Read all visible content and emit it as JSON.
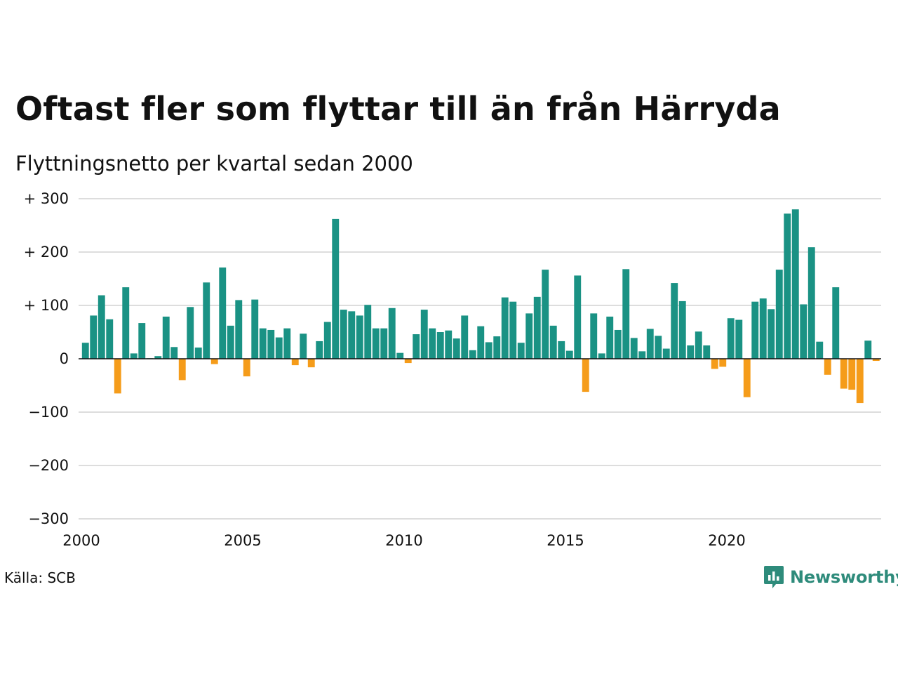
{
  "title": "Oftast fler som flyttar till än från Härryda",
  "subtitle": "Flyttningsnetto per kvartal sedan 2000",
  "source": "Källa: SCB",
  "brand": "Newsworthy",
  "colors": {
    "positive": "#1a9284",
    "negative": "#f59c1a",
    "grid": "#dddddd",
    "axis": "#111111",
    "brand": "#2e8b7b"
  },
  "icons": {
    "brand_logo": "newsworthy-logo-icon"
  },
  "chart_data": {
    "type": "bar",
    "title": "Oftast fler som flyttar till än från Härryda",
    "subtitle": "Flyttningsnetto per kvartal sedan 2000",
    "xlabel": "",
    "ylabel": "",
    "x_start": "2000-Q1",
    "frequency": "quarter",
    "xlim": [
      2000,
      2024.9
    ],
    "ylim": [
      -300,
      300
    ],
    "y_ticks": [
      300,
      200,
      100,
      0,
      -100,
      -200,
      -300
    ],
    "y_tick_labels": [
      "+ 300",
      "+ 200",
      "+ 100",
      "0",
      "−100",
      "−200",
      "−300"
    ],
    "x_ticks": [
      2000,
      2005,
      2010,
      2015,
      2020
    ],
    "x_tick_labels": [
      "2000",
      "2005",
      "2010",
      "2015",
      "2020"
    ],
    "grid": "horizontal",
    "values": [
      30,
      81,
      119,
      74,
      -65,
      134,
      10,
      67,
      1,
      5,
      79,
      22,
      -40,
      97,
      21,
      143,
      -10,
      171,
      62,
      110,
      -33,
      111,
      57,
      54,
      40,
      57,
      -12,
      47,
      -16,
      33,
      69,
      262,
      92,
      89,
      81,
      101,
      57,
      57,
      95,
      11,
      -8,
      46,
      92,
      57,
      50,
      53,
      38,
      81,
      16,
      61,
      31,
      42,
      115,
      107,
      30,
      85,
      116,
      167,
      62,
      33,
      15,
      156,
      -62,
      85,
      10,
      79,
      54,
      168,
      39,
      14,
      56,
      43,
      19,
      142,
      108,
      25,
      51,
      25,
      -19,
      -15,
      76,
      73,
      -72,
      107,
      113,
      93,
      167,
      272,
      280,
      102,
      209,
      32,
      -30,
      134,
      -56,
      -58,
      -83,
      34,
      -4
    ]
  }
}
